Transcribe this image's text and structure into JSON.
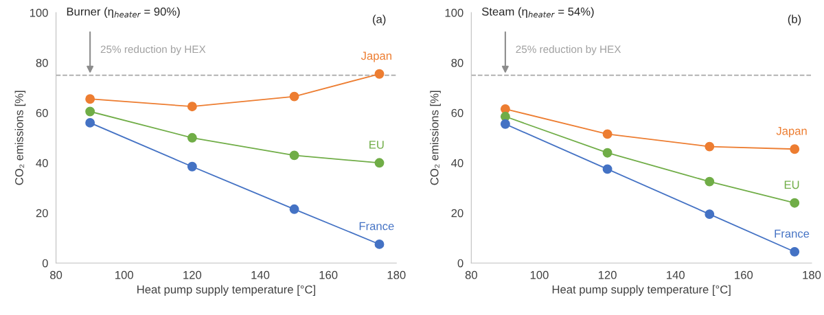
{
  "chart_data": [
    {
      "type": "line",
      "title": "Burner (η$_{heater}$ = 90%)",
      "xlabel": "Heat pump supply temperature [°C]",
      "ylabel": "CO₂ emissions [%]",
      "annotations": [
        "(a)"
      ],
      "x": [
        90,
        120,
        150,
        175
      ],
      "xlim": [
        80,
        180
      ],
      "xticks": [
        80,
        100,
        120,
        140,
        160,
        180
      ],
      "ylim": [
        0,
        100
      ],
      "yticks": [
        0,
        20,
        40,
        60,
        80,
        100
      ],
      "grid": false,
      "legend": false,
      "marker": "circle",
      "line_style": "solid",
      "ref_lines": [
        {
          "axis": "y",
          "value": 75,
          "label": "25% reduction by HEX",
          "color": "#a6a6a6",
          "line_style": "dashed"
        }
      ],
      "series": [
        {
          "name": "Japan",
          "color": "#ed7d31",
          "values": [
            65.5,
            62.5,
            66.5,
            75.5
          ]
        },
        {
          "name": "EU",
          "color": "#70ad47",
          "values": [
            60.5,
            50,
            43,
            40
          ]
        },
        {
          "name": "France",
          "color": "#4472c4",
          "values": [
            56,
            38.5,
            21.5,
            7.5
          ]
        }
      ]
    },
    {
      "type": "line",
      "title": "Steam (η$_{heater}$ = 54%)",
      "xlabel": "Heat pump supply temperature [°C]",
      "ylabel": "CO₂ emissions [%]",
      "annotations": [
        "(b)"
      ],
      "x": [
        90,
        120,
        150,
        175
      ],
      "xlim": [
        80,
        180
      ],
      "xticks": [
        80,
        100,
        120,
        140,
        160,
        180
      ],
      "ylim": [
        0,
        100
      ],
      "yticks": [
        0,
        20,
        40,
        60,
        80,
        100
      ],
      "grid": false,
      "legend": false,
      "marker": "circle",
      "line_style": "solid",
      "ref_lines": [
        {
          "axis": "y",
          "value": 75,
          "label": "25% reduction by HEX",
          "color": "#a6a6a6",
          "line_style": "dashed"
        }
      ],
      "series": [
        {
          "name": "Japan",
          "color": "#ed7d31",
          "values": [
            61.5,
            51.5,
            46.5,
            45.5
          ]
        },
        {
          "name": "EU",
          "color": "#70ad47",
          "values": [
            58.5,
            44,
            32.5,
            24
          ]
        },
        {
          "name": "France",
          "color": "#4472c4",
          "values": [
            55.5,
            37.5,
            19.5,
            4.5
          ]
        }
      ]
    }
  ]
}
